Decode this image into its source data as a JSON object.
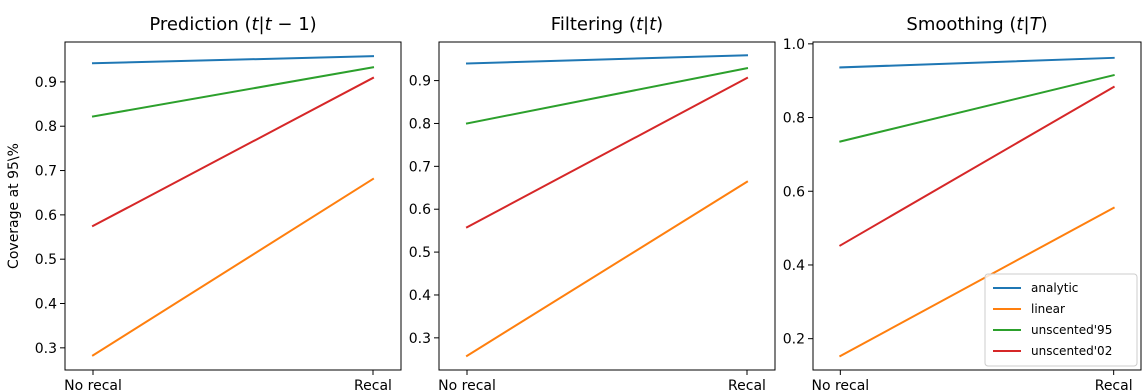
{
  "chart_data": [
    {
      "type": "line",
      "title_parts": [
        "Prediction (",
        "t",
        "|",
        "t",
        " − 1)"
      ],
      "title_italic": [
        false,
        true,
        false,
        true,
        false
      ],
      "title": "Prediction (t|t − 1)",
      "xlabel": "",
      "ylabel": "Coverage at 95\\%",
      "categories": [
        "No recal",
        "Recal"
      ],
      "ylim": [
        0.25,
        0.99
      ],
      "yticks": [
        0.3,
        0.4,
        0.5,
        0.6,
        0.7,
        0.8,
        0.9
      ],
      "ytick_labels": [
        "0.3",
        "0.4",
        "0.5",
        "0.6",
        "0.7",
        "0.8",
        "0.9"
      ],
      "series": [
        {
          "name": "analytic",
          "color": "#1f77b4",
          "values": [
            0.942,
            0.958
          ]
        },
        {
          "name": "linear",
          "color": "#ff7f0e",
          "values": [
            0.283,
            0.681
          ]
        },
        {
          "name": "unscented'95",
          "color": "#2ca02c",
          "values": [
            0.822,
            0.933
          ]
        },
        {
          "name": "unscented'02",
          "color": "#d62728",
          "values": [
            0.575,
            0.909
          ]
        }
      ],
      "legend": "none"
    },
    {
      "type": "line",
      "title_parts": [
        "Filtering (",
        "t",
        "|",
        "t",
        ")"
      ],
      "title_italic": [
        false,
        true,
        false,
        true,
        false
      ],
      "title": "Filtering (t|t)",
      "xlabel": "",
      "ylabel": "",
      "categories": [
        "No recal",
        "Recal"
      ],
      "ylim": [
        0.225,
        0.99
      ],
      "yticks": [
        0.3,
        0.4,
        0.5,
        0.6,
        0.7,
        0.8,
        0.9
      ],
      "ytick_labels": [
        "0.3",
        "0.4",
        "0.5",
        "0.6",
        "0.7",
        "0.8",
        "0.9"
      ],
      "series": [
        {
          "name": "analytic",
          "color": "#1f77b4",
          "values": [
            0.94,
            0.959
          ]
        },
        {
          "name": "linear",
          "color": "#ff7f0e",
          "values": [
            0.258,
            0.664
          ]
        },
        {
          "name": "unscented'95",
          "color": "#2ca02c",
          "values": [
            0.8,
            0.929
          ]
        },
        {
          "name": "unscented'02",
          "color": "#d62728",
          "values": [
            0.558,
            0.906
          ]
        }
      ],
      "legend": "none"
    },
    {
      "type": "line",
      "title_parts": [
        "Smoothing (",
        "t",
        "|",
        "T",
        ")"
      ],
      "title_italic": [
        false,
        true,
        false,
        true,
        false
      ],
      "title": "Smoothing (t|T)",
      "xlabel": "",
      "ylabel": "",
      "categories": [
        "No recal",
        "Recal"
      ],
      "ylim": [
        0.115,
        1.005
      ],
      "yticks": [
        0.2,
        0.4,
        0.6,
        0.8,
        1.0
      ],
      "ytick_labels": [
        "0.2",
        "0.4",
        "0.6",
        "0.8",
        "1.0"
      ],
      "series": [
        {
          "name": "analytic",
          "color": "#1f77b4",
          "values": [
            0.936,
            0.962
          ]
        },
        {
          "name": "linear",
          "color": "#ff7f0e",
          "values": [
            0.153,
            0.555
          ]
        },
        {
          "name": "unscented'95",
          "color": "#2ca02c",
          "values": [
            0.735,
            0.915
          ]
        },
        {
          "name": "unscented'02",
          "color": "#d62728",
          "values": [
            0.453,
            0.883
          ]
        }
      ],
      "legend": "lower right"
    }
  ]
}
